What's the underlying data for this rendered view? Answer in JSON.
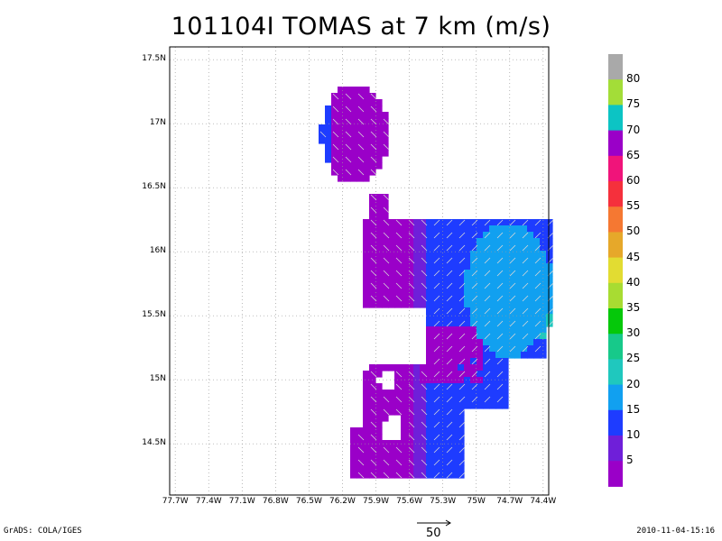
{
  "title": "101104I TOMAS at 7 km (m/s)",
  "footer": {
    "left": "GrADS: COLA/IGES",
    "right": "2010-11-04-15:16"
  },
  "reference_vector": {
    "label": "50",
    "value": 50
  },
  "map": {
    "lon_ticks": [
      "77.7W",
      "77.4W",
      "77.1W",
      "76.8W",
      "76.5W",
      "76.2W",
      "75.9W",
      "75.6W",
      "75.3W",
      "75W",
      "74.7W",
      "74.4W"
    ],
    "lon_values": [
      -77.7,
      -77.4,
      -77.1,
      -76.8,
      -76.5,
      -76.2,
      -75.9,
      -75.6,
      -75.3,
      -75.0,
      -74.7,
      -74.4
    ],
    "lat_ticks": [
      "17.5N",
      "17N",
      "16.5N",
      "16N",
      "15.5N",
      "15N",
      "14.5N"
    ],
    "lat_values": [
      17.5,
      17.0,
      16.5,
      16.0,
      15.5,
      15.0,
      14.5
    ],
    "lon_range": [
      -77.75,
      -74.35
    ],
    "lat_range": [
      14.1,
      17.6
    ],
    "grid": "dotted",
    "colors": {
      "c5": "#9a00c8",
      "c10": "#6f1fd9",
      "c15": "#1e3cff",
      "c20": "#11a0f0",
      "c25": "#1fc8be",
      "c30": "#17c98a",
      "arrow": "#d8d8d8"
    }
  },
  "colorbar": {
    "labels": [
      "80",
      "75",
      "70",
      "65",
      "60",
      "55",
      "50",
      "45",
      "40",
      "35",
      "30",
      "25",
      "20",
      "15",
      "10",
      "5"
    ],
    "colors": [
      "#a9a9a9",
      "#a3dd38",
      "#0cc4c4",
      "#9a00c8",
      "#f0147a",
      "#f5303c",
      "#f57832",
      "#e6a82a",
      "#e2dc32",
      "#a8dc32",
      "#05c80a",
      "#17c98a",
      "#1fc8be",
      "#11a0f0",
      "#1e3cff",
      "#6f1fd9",
      "#9a00c8"
    ]
  }
}
